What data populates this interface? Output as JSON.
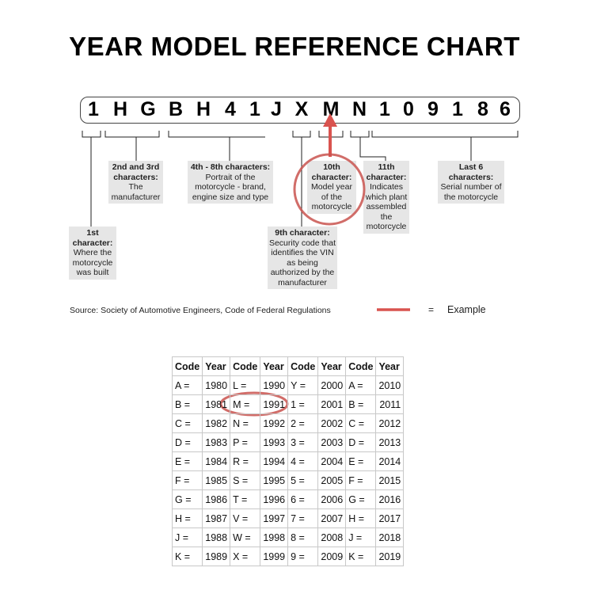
{
  "title": "YEAR MODEL REFERENCE CHART",
  "vin": [
    "1",
    "H",
    "G",
    "B",
    "H",
    "4",
    "1",
    "J",
    "X",
    "M",
    "N",
    "1",
    "0",
    "9",
    "1",
    "8",
    "6"
  ],
  "labels": {
    "first": {
      "head": "1st character:",
      "body": "Where the motorcycle was built"
    },
    "second_third": {
      "head": "2nd and 3rd characters:",
      "body": "The manufacturer"
    },
    "fourth_eighth": {
      "head": "4th - 8th characters:",
      "body": "Portrait of the motorcycle - brand, engine size and type"
    },
    "ninth": {
      "head": "9th character:",
      "body": "Security code that identifies the VIN as being authorized by the manufacturer"
    },
    "tenth": {
      "head": "10th character:",
      "body": "Model year of the motorcycle"
    },
    "eleventh": {
      "head": "11th character:",
      "body": "Indicates which plant assembled the motorcycle"
    },
    "last_six": {
      "head": "Last 6 characters:",
      "body": "Serial number of the motorcycle"
    }
  },
  "source": "Source:  Society of Automotive Engineers, Code of Federal Regulations",
  "legend": {
    "equals": "=",
    "label": "Example",
    "color": "#d9534f"
  },
  "table": {
    "headers": [
      "Code",
      "Year",
      "Code",
      "Year",
      "Code",
      "Year",
      "Code",
      "Year"
    ],
    "rows": [
      [
        "A =",
        "1980",
        "L =",
        "1990",
        "Y =",
        "2000",
        "A =",
        "2010"
      ],
      [
        "B =",
        "1981",
        "M =",
        "1991",
        "1 =",
        "2001",
        "B =",
        "2011"
      ],
      [
        "C =",
        "1982",
        "N =",
        "1992",
        "2 =",
        "2002",
        "C =",
        "2012"
      ],
      [
        "D =",
        "1983",
        "P =",
        "1993",
        "3 =",
        "2003",
        "D =",
        "2013"
      ],
      [
        "E =",
        "1984",
        "R =",
        "1994",
        "4 =",
        "2004",
        "E =",
        "2014"
      ],
      [
        "F =",
        "1985",
        "S =",
        "1995",
        "5 =",
        "2005",
        "F =",
        "2015"
      ],
      [
        "G =",
        "1986",
        "T =",
        "1996",
        "6 =",
        "2006",
        "G =",
        "2016"
      ],
      [
        "H =",
        "1987",
        "V =",
        "1997",
        "7 =",
        "2007",
        "H =",
        "2017"
      ],
      [
        "J =",
        "1988",
        "W =",
        "1998",
        "8 =",
        "2008",
        "J =",
        "2018"
      ],
      [
        "K =",
        "1989",
        "X =",
        "1999",
        "9 =",
        "2009",
        "K =",
        "2019"
      ]
    ]
  }
}
